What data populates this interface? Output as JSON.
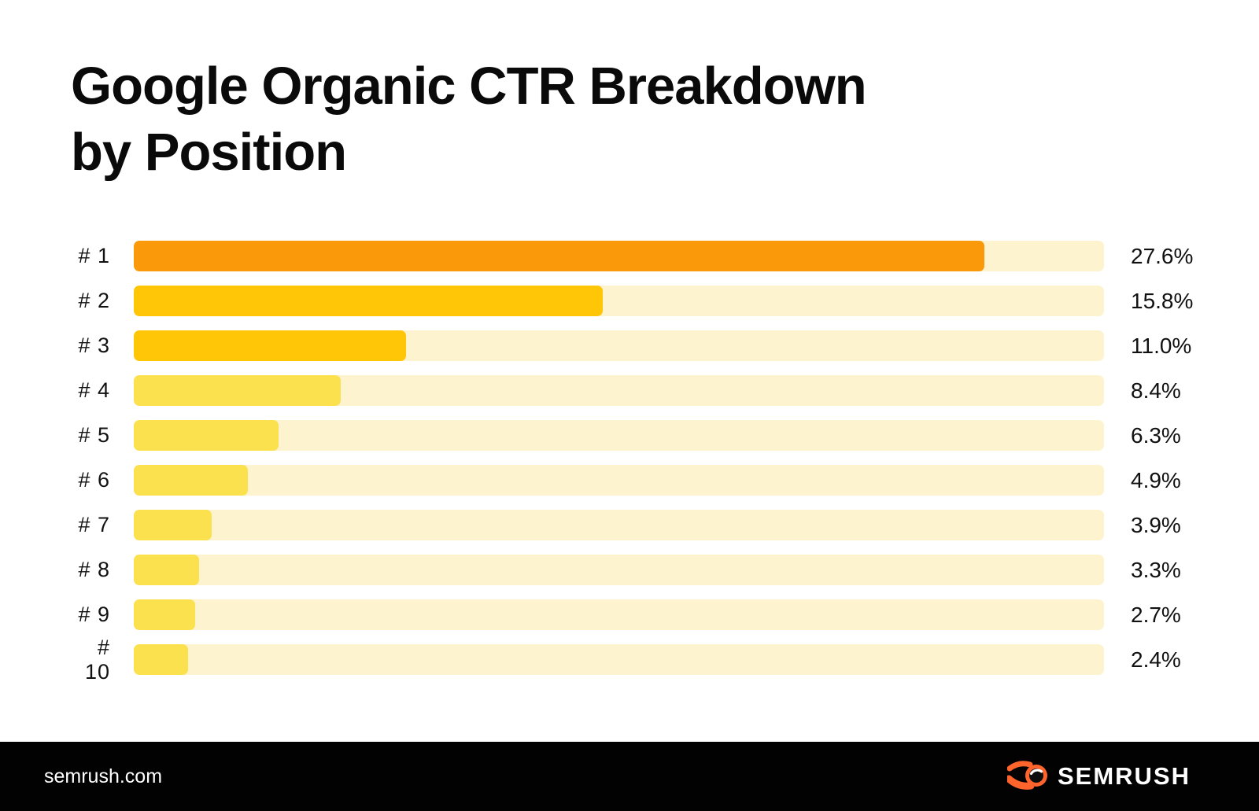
{
  "title": {
    "line1": "Google Organic CTR Breakdown",
    "line2": "by Position"
  },
  "chart_data": {
    "type": "bar",
    "orientation": "horizontal",
    "title": "Google Organic CTR Breakdown by Position",
    "categories": [
      "# 1",
      "# 2",
      "# 3",
      "# 4",
      "# 5",
      "# 6",
      "# 7",
      "# 8",
      "# 9",
      "# 10"
    ],
    "values": [
      27.6,
      15.8,
      11.0,
      8.4,
      6.3,
      4.9,
      3.9,
      3.3,
      2.7,
      2.4
    ],
    "value_labels": [
      "27.6%",
      "15.8%",
      "11.0%",
      "8.4%",
      "6.3%",
      "4.9%",
      "3.9%",
      "3.3%",
      "2.7%",
      "2.4%"
    ],
    "unit": "%",
    "xlabel": "",
    "ylabel": "",
    "grid": false,
    "legend": "none",
    "bar_colors": [
      "#FA9A0A",
      "#FFC607",
      "#FFC607",
      "#FCE14F",
      "#FCE14F",
      "#FCE14F",
      "#FCE14F",
      "#FCE14F",
      "#FCE14F",
      "#FCE14F"
    ],
    "track_color": "#FDF3CF",
    "bar_fill_pct": [
      87.7,
      48.3,
      28.1,
      21.3,
      14.9,
      11.8,
      8.0,
      6.7,
      6.3,
      5.6
    ]
  },
  "footer": {
    "website": "semrush.com",
    "brand": "SEMRUSH",
    "brand_color": "#FF642D",
    "background": "#020202"
  },
  "colors": {
    "background": "#FFFFFF",
    "text": "#0A0A0A"
  }
}
